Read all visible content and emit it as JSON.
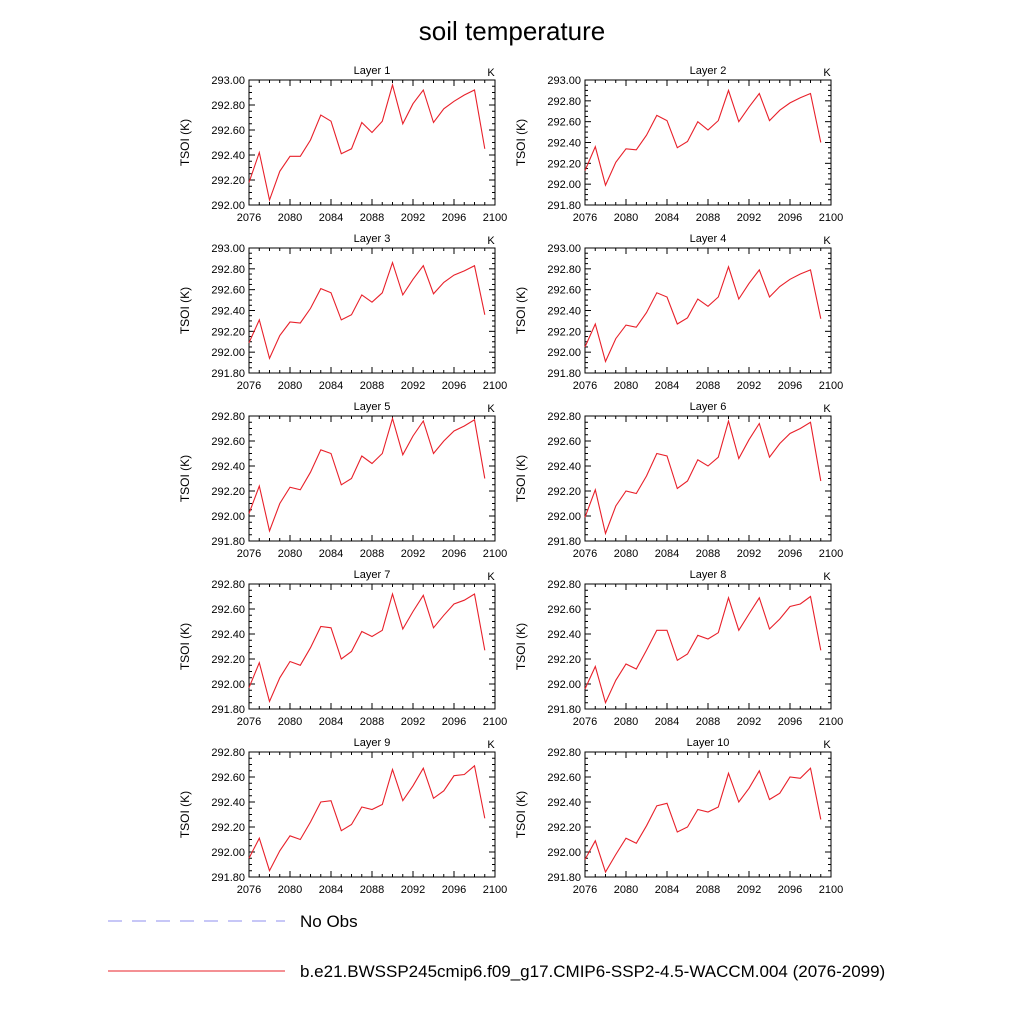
{
  "title": "soil temperature",
  "y_label": "TSOI  (K)",
  "units_label": "K",
  "x_ticks": [
    2076,
    2080,
    2084,
    2088,
    2092,
    2096,
    2100
  ],
  "xlim": [
    2076,
    2100
  ],
  "legend": [
    {
      "label": "No Obs",
      "color": "#8f8fef",
      "style": "dashed"
    },
    {
      "label": "b.e21.BWSSP245cmip6.f09_g17.CMIP6-SSP2-4.5-WACCM.004 (2076-2099)",
      "color": "#e8202a",
      "style": "solid"
    }
  ],
  "chart_data": [
    {
      "type": "line",
      "title": "Layer 1",
      "ylim": [
        292.0,
        293.0
      ],
      "y_ticks": [
        "292.00",
        "292.20",
        "292.40",
        "292.60",
        "292.80",
        "293.00"
      ],
      "x": [
        2076,
        2077,
        2078,
        2079,
        2080,
        2081,
        2082,
        2083,
        2084,
        2085,
        2086,
        2087,
        2088,
        2089,
        2090,
        2091,
        2092,
        2093,
        2094,
        2095,
        2096,
        2097,
        2098,
        2099
      ],
      "series": [
        {
          "name": "b.e21.BWSSP245cmip6.f09_g17.CMIP6-SSP2-4.5-WACCM.004 (2076-2099)",
          "values": [
            292.18,
            292.42,
            292.04,
            292.27,
            292.39,
            292.39,
            292.52,
            292.72,
            292.67,
            292.41,
            292.45,
            292.66,
            292.58,
            292.67,
            292.96,
            292.65,
            292.81,
            292.92,
            292.66,
            292.77,
            292.83,
            292.88,
            292.92,
            292.45
          ]
        }
      ]
    },
    {
      "type": "line",
      "title": "Layer 2",
      "ylim": [
        291.8,
        293.0
      ],
      "y_ticks": [
        "291.80",
        "292.00",
        "292.20",
        "292.40",
        "292.60",
        "292.80",
        "293.00"
      ],
      "x": [
        2076,
        2077,
        2078,
        2079,
        2080,
        2081,
        2082,
        2083,
        2084,
        2085,
        2086,
        2087,
        2088,
        2089,
        2090,
        2091,
        2092,
        2093,
        2094,
        2095,
        2096,
        2097,
        2098,
        2099
      ],
      "series": [
        {
          "name": "b.e21.BWSSP245cmip6.f09_g17.CMIP6-SSP2-4.5-WACCM.004 (2076-2099)",
          "values": [
            292.13,
            292.36,
            291.99,
            292.21,
            292.34,
            292.33,
            292.47,
            292.66,
            292.61,
            292.35,
            292.41,
            292.6,
            292.52,
            292.61,
            292.9,
            292.6,
            292.74,
            292.87,
            292.61,
            292.71,
            292.78,
            292.83,
            292.87,
            292.4
          ]
        }
      ]
    },
    {
      "type": "line",
      "title": "Layer 3",
      "ylim": [
        291.8,
        293.0
      ],
      "y_ticks": [
        "291.80",
        "292.00",
        "292.20",
        "292.40",
        "292.60",
        "292.80",
        "293.00"
      ],
      "x": [
        2076,
        2077,
        2078,
        2079,
        2080,
        2081,
        2082,
        2083,
        2084,
        2085,
        2086,
        2087,
        2088,
        2089,
        2090,
        2091,
        2092,
        2093,
        2094,
        2095,
        2096,
        2097,
        2098,
        2099
      ],
      "series": [
        {
          "name": "b.e21.BWSSP245cmip6.f09_g17.CMIP6-SSP2-4.5-WACCM.004 (2076-2099)",
          "values": [
            292.09,
            292.31,
            291.94,
            292.16,
            292.29,
            292.28,
            292.42,
            292.61,
            292.57,
            292.31,
            292.36,
            292.55,
            292.48,
            292.57,
            292.86,
            292.55,
            292.7,
            292.83,
            292.56,
            292.67,
            292.74,
            292.78,
            292.83,
            292.36
          ]
        }
      ]
    },
    {
      "type": "line",
      "title": "Layer 4",
      "ylim": [
        291.8,
        293.0
      ],
      "y_ticks": [
        "291.80",
        "292.00",
        "292.20",
        "292.40",
        "292.60",
        "292.80",
        "293.00"
      ],
      "x": [
        2076,
        2077,
        2078,
        2079,
        2080,
        2081,
        2082,
        2083,
        2084,
        2085,
        2086,
        2087,
        2088,
        2089,
        2090,
        2091,
        2092,
        2093,
        2094,
        2095,
        2096,
        2097,
        2098,
        2099
      ],
      "series": [
        {
          "name": "b.e21.BWSSP245cmip6.f09_g17.CMIP6-SSP2-4.5-WACCM.004 (2076-2099)",
          "values": [
            292.05,
            292.27,
            291.91,
            292.13,
            292.26,
            292.24,
            292.38,
            292.57,
            292.53,
            292.27,
            292.33,
            292.51,
            292.44,
            292.53,
            292.82,
            292.51,
            292.66,
            292.79,
            292.53,
            292.63,
            292.7,
            292.75,
            292.79,
            292.32
          ]
        }
      ]
    },
    {
      "type": "line",
      "title": "Layer 5",
      "ylim": [
        291.8,
        292.8
      ],
      "y_ticks": [
        "291.80",
        "292.00",
        "292.20",
        "292.40",
        "292.60",
        "292.80"
      ],
      "x": [
        2076,
        2077,
        2078,
        2079,
        2080,
        2081,
        2082,
        2083,
        2084,
        2085,
        2086,
        2087,
        2088,
        2089,
        2090,
        2091,
        2092,
        2093,
        2094,
        2095,
        2096,
        2097,
        2098,
        2099
      ],
      "series": [
        {
          "name": "b.e21.BWSSP245cmip6.f09_g17.CMIP6-SSP2-4.5-WACCM.004 (2076-2099)",
          "values": [
            292.02,
            292.24,
            291.88,
            292.1,
            292.23,
            292.21,
            292.35,
            292.53,
            292.5,
            292.25,
            292.3,
            292.48,
            292.42,
            292.5,
            292.78,
            292.49,
            292.64,
            292.76,
            292.5,
            292.6,
            292.68,
            292.72,
            292.77,
            292.3
          ]
        }
      ]
    },
    {
      "type": "line",
      "title": "Layer 6",
      "ylim": [
        291.8,
        292.8
      ],
      "y_ticks": [
        "291.80",
        "292.00",
        "292.20",
        "292.40",
        "292.60",
        "292.80"
      ],
      "x": [
        2076,
        2077,
        2078,
        2079,
        2080,
        2081,
        2082,
        2083,
        2084,
        2085,
        2086,
        2087,
        2088,
        2089,
        2090,
        2091,
        2092,
        2093,
        2094,
        2095,
        2096,
        2097,
        2098,
        2099
      ],
      "series": [
        {
          "name": "b.e21.BWSSP245cmip6.f09_g17.CMIP6-SSP2-4.5-WACCM.004 (2076-2099)",
          "values": [
            291.99,
            292.21,
            291.86,
            292.08,
            292.2,
            292.18,
            292.32,
            292.5,
            292.48,
            292.22,
            292.28,
            292.45,
            292.4,
            292.47,
            292.76,
            292.46,
            292.61,
            292.74,
            292.47,
            292.58,
            292.66,
            292.7,
            292.75,
            292.28
          ]
        }
      ]
    },
    {
      "type": "line",
      "title": "Layer 7",
      "ylim": [
        291.8,
        292.8
      ],
      "y_ticks": [
        "291.80",
        "292.00",
        "292.20",
        "292.40",
        "292.60",
        "292.80"
      ],
      "x": [
        2076,
        2077,
        2078,
        2079,
        2080,
        2081,
        2082,
        2083,
        2084,
        2085,
        2086,
        2087,
        2088,
        2089,
        2090,
        2091,
        2092,
        2093,
        2094,
        2095,
        2096,
        2097,
        2098,
        2099
      ],
      "series": [
        {
          "name": "b.e21.BWSSP245cmip6.f09_g17.CMIP6-SSP2-4.5-WACCM.004 (2076-2099)",
          "values": [
            291.97,
            292.17,
            291.86,
            292.05,
            292.18,
            292.15,
            292.29,
            292.46,
            292.45,
            292.2,
            292.26,
            292.42,
            292.38,
            292.43,
            292.72,
            292.44,
            292.58,
            292.71,
            292.45,
            292.55,
            292.64,
            292.67,
            292.72,
            292.27
          ]
        }
      ]
    },
    {
      "type": "line",
      "title": "Layer 8",
      "ylim": [
        291.8,
        292.8
      ],
      "y_ticks": [
        "291.80",
        "292.00",
        "292.20",
        "292.40",
        "292.60",
        "292.80"
      ],
      "x": [
        2076,
        2077,
        2078,
        2079,
        2080,
        2081,
        2082,
        2083,
        2084,
        2085,
        2086,
        2087,
        2088,
        2089,
        2090,
        2091,
        2092,
        2093,
        2094,
        2095,
        2096,
        2097,
        2098,
        2099
      ],
      "series": [
        {
          "name": "b.e21.BWSSP245cmip6.f09_g17.CMIP6-SSP2-4.5-WACCM.004 (2076-2099)",
          "values": [
            291.96,
            292.14,
            291.85,
            292.03,
            292.16,
            292.12,
            292.27,
            292.43,
            292.43,
            292.19,
            292.24,
            292.39,
            292.36,
            292.41,
            292.69,
            292.43,
            292.56,
            292.69,
            292.44,
            292.52,
            292.62,
            292.64,
            292.7,
            292.27
          ]
        }
      ]
    },
    {
      "type": "line",
      "title": "Layer 9",
      "ylim": [
        291.8,
        292.8
      ],
      "y_ticks": [
        "291.80",
        "292.00",
        "292.20",
        "292.40",
        "292.60",
        "292.80"
      ],
      "x": [
        2076,
        2077,
        2078,
        2079,
        2080,
        2081,
        2082,
        2083,
        2084,
        2085,
        2086,
        2087,
        2088,
        2089,
        2090,
        2091,
        2092,
        2093,
        2094,
        2095,
        2096,
        2097,
        2098,
        2099
      ],
      "series": [
        {
          "name": "b.e21.BWSSP245cmip6.f09_g17.CMIP6-SSP2-4.5-WACCM.004 (2076-2099)",
          "values": [
            291.95,
            292.11,
            291.85,
            292.01,
            292.13,
            292.1,
            292.24,
            292.4,
            292.41,
            292.17,
            292.22,
            292.36,
            292.34,
            292.38,
            292.66,
            292.41,
            292.53,
            292.67,
            292.43,
            292.49,
            292.61,
            292.62,
            292.69,
            292.27
          ]
        }
      ]
    },
    {
      "type": "line",
      "title": "Layer 10",
      "ylim": [
        291.8,
        292.8
      ],
      "y_ticks": [
        "291.80",
        "292.00",
        "292.20",
        "292.40",
        "292.60",
        "292.80"
      ],
      "x": [
        2076,
        2077,
        2078,
        2079,
        2080,
        2081,
        2082,
        2083,
        2084,
        2085,
        2086,
        2087,
        2088,
        2089,
        2090,
        2091,
        2092,
        2093,
        2094,
        2095,
        2096,
        2097,
        2098,
        2099
      ],
      "series": [
        {
          "name": "b.e21.BWSSP245cmip6.f09_g17.CMIP6-SSP2-4.5-WACCM.004 (2076-2099)",
          "values": [
            291.94,
            292.09,
            291.84,
            291.98,
            292.11,
            292.07,
            292.21,
            292.37,
            292.39,
            292.16,
            292.2,
            292.34,
            292.32,
            292.36,
            292.63,
            292.4,
            292.51,
            292.65,
            292.42,
            292.47,
            292.6,
            292.59,
            292.67,
            292.26
          ]
        }
      ]
    }
  ]
}
